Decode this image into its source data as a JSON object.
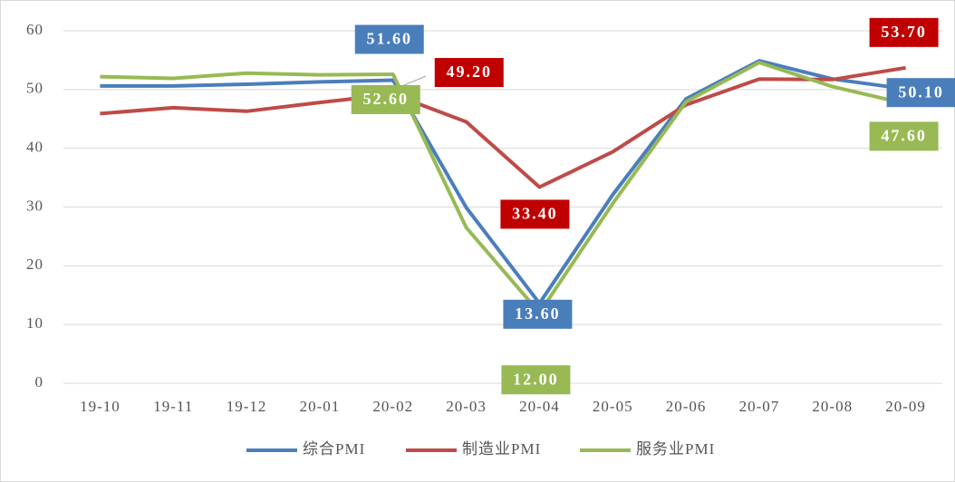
{
  "chart_data": {
    "type": "line",
    "categories": [
      "19-10",
      "19-11",
      "19-12",
      "20-01",
      "20-02",
      "20-03",
      "20-04",
      "20-05",
      "20-06",
      "20-07",
      "20-08",
      "20-09"
    ],
    "series": [
      {
        "name": "综合PMI",
        "color": "#4a7ebb",
        "values": [
          50.6,
          50.6,
          50.9,
          51.3,
          51.6,
          29.9,
          13.6,
          32.1,
          48.4,
          54.9,
          51.8,
          50.1
        ],
        "value_labels": [
          null,
          null,
          null,
          null,
          "51.60",
          null,
          "13.60",
          null,
          null,
          null,
          null,
          "50.10"
        ]
      },
      {
        "name": "制造业PMI",
        "color": "#be4b48",
        "values": [
          45.9,
          46.9,
          46.3,
          47.8,
          49.2,
          44.5,
          33.4,
          39.4,
          47.4,
          51.8,
          51.7,
          53.7
        ],
        "value_labels": [
          null,
          null,
          null,
          null,
          "49.20",
          null,
          "33.40",
          null,
          null,
          null,
          null,
          "53.70"
        ]
      },
      {
        "name": "服务业PMI",
        "color": "#98b954",
        "values": [
          52.2,
          51.9,
          52.8,
          52.5,
          52.6,
          26.5,
          12.0,
          30.6,
          47.9,
          54.6,
          50.5,
          47.6
        ],
        "value_labels": [
          null,
          null,
          null,
          null,
          "52.60",
          null,
          "12.00",
          null,
          null,
          null,
          null,
          "47.60"
        ]
      }
    ],
    "ylim": [
      0,
      60
    ],
    "yticks": [
      0,
      10,
      20,
      30,
      40,
      50,
      60
    ],
    "grid": true,
    "legend": "bottom"
  }
}
